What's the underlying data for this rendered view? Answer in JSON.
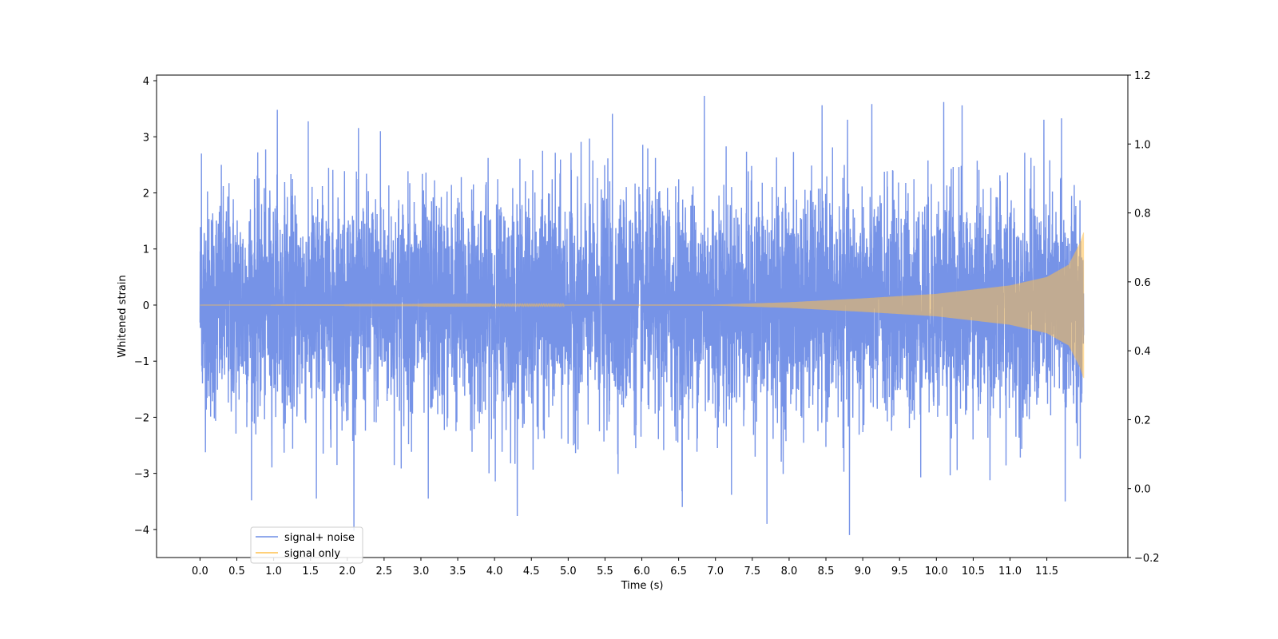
{
  "chart_data": {
    "type": "line",
    "title": "",
    "xlabel": "Time (s)",
    "ylabel": "Whitened strain",
    "y2label": "",
    "xlim": [
      -0.59,
      12.6
    ],
    "ylim": [
      -4.5,
      4.1
    ],
    "y2lim": [
      -0.2,
      1.2
    ],
    "x_ticks": [
      "0.0",
      "0.5",
      "1.0",
      "1.5",
      "2.0",
      "2.5",
      "3.0",
      "3.5",
      "4.0",
      "4.5",
      "5.0",
      "5.5",
      "6.0",
      "6.5",
      "7.0",
      "7.5",
      "8.0",
      "8.5",
      "9.0",
      "9.5",
      "10.0",
      "10.5",
      "11.0",
      "11.5"
    ],
    "y_ticks": [
      "4",
      "3",
      "2",
      "1",
      "0",
      "−1",
      "−2",
      "−3",
      "−4"
    ],
    "y2_ticks": [
      "1.2",
      "1.0",
      "0.8",
      "0.6",
      "0.4",
      "0.2",
      "0.0",
      "−0.2"
    ],
    "grid": false,
    "legend_position": "bottom-left",
    "series": [
      {
        "name": "signal+ noise",
        "color": "#6f8de6",
        "x_range": [
          0.0,
          12.0
        ],
        "noise_amplitude_typical": 1.0,
        "peak_max": 3.73,
        "peak_min": -4.1,
        "peaks": [
          [
            0.02,
            2.7
          ],
          [
            1.05,
            3.48
          ],
          [
            2.45,
            3.1
          ],
          [
            5.6,
            3.41
          ],
          [
            6.85,
            3.73
          ],
          [
            10.1,
            3.62
          ],
          [
            10.35,
            3.56
          ],
          [
            11.7,
            3.33
          ],
          [
            1.58,
            -3.45
          ],
          [
            3.1,
            -3.45
          ],
          [
            6.55,
            -3.6
          ],
          [
            7.7,
            -3.9
          ],
          [
            8.82,
            -4.1
          ],
          [
            11.75,
            -3.5
          ]
        ]
      },
      {
        "name": "signal only",
        "color": "#ffc04d",
        "x_range": [
          0.0,
          12.0
        ],
        "envelope": [
          [
            0.0,
            0.0
          ],
          [
            7.0,
            0.01
          ],
          [
            8.0,
            0.05
          ],
          [
            9.0,
            0.12
          ],
          [
            10.0,
            0.2
          ],
          [
            11.0,
            0.35
          ],
          [
            11.5,
            0.5
          ],
          [
            11.8,
            0.72
          ],
          [
            11.95,
            1.1
          ],
          [
            12.0,
            1.3
          ]
        ]
      }
    ]
  }
}
